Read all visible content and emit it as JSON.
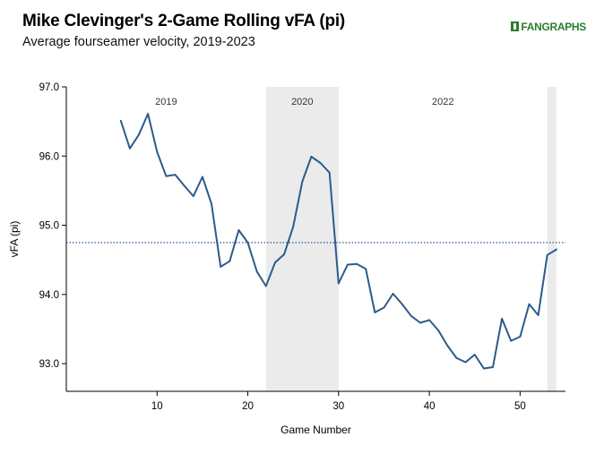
{
  "header": {
    "title": "Mike Clevinger's 2-Game Rolling vFA (pi)",
    "subtitle": "Average fourseamer velocity, 2019-2023",
    "logo": "FANGRAPHS"
  },
  "chart_data": {
    "type": "line",
    "xlabel": "Game Number",
    "ylabel": "vFA (pi)",
    "xlim": [
      0,
      55
    ],
    "ylim": [
      92.6,
      97.0
    ],
    "x_ticks": [
      10,
      20,
      30,
      40,
      50
    ],
    "y_ticks": [
      93.0,
      94.0,
      95.0,
      96.0,
      97.0
    ],
    "y_tick_labels": [
      "93.0",
      "94.0",
      "95.0",
      "96.0",
      "97.0"
    ],
    "reference_line": 94.75,
    "season_bands": [
      {
        "label": "2019",
        "start": 0,
        "end": 22,
        "shaded": false
      },
      {
        "label": "2020",
        "start": 22,
        "end": 30,
        "shaded": true
      },
      {
        "label": "2022",
        "start": 30,
        "end": 53,
        "shaded": false
      },
      {
        "label": "",
        "start": 53,
        "end": 54,
        "shaded": true
      }
    ],
    "grid": false,
    "series": [
      {
        "color": "#2d5b8a",
        "x": [
          6,
          7,
          8,
          9,
          10,
          11,
          12,
          13,
          14,
          15,
          16,
          17,
          18,
          19,
          20,
          21,
          22,
          23,
          24,
          25,
          26,
          27,
          28,
          29,
          30,
          31,
          32,
          33,
          34,
          35,
          36,
          37,
          38,
          39,
          40,
          41,
          42,
          43,
          44,
          45,
          46,
          47,
          48,
          49,
          50,
          51,
          52,
          53,
          54
        ],
        "values": [
          96.51,
          96.11,
          96.31,
          96.61,
          96.06,
          95.71,
          95.73,
          95.57,
          95.42,
          95.7,
          95.31,
          94.4,
          94.48,
          94.93,
          94.75,
          94.33,
          94.12,
          94.46,
          94.58,
          94.98,
          95.63,
          95.99,
          95.9,
          95.76,
          94.16,
          94.43,
          94.44,
          94.37,
          93.74,
          93.81,
          94.01,
          93.86,
          93.69,
          93.59,
          93.63,
          93.48,
          93.26,
          93.08,
          93.02,
          93.13,
          92.93,
          92.95,
          93.65,
          93.33,
          93.39,
          93.86,
          93.7,
          94.57,
          94.65
        ]
      }
    ]
  }
}
